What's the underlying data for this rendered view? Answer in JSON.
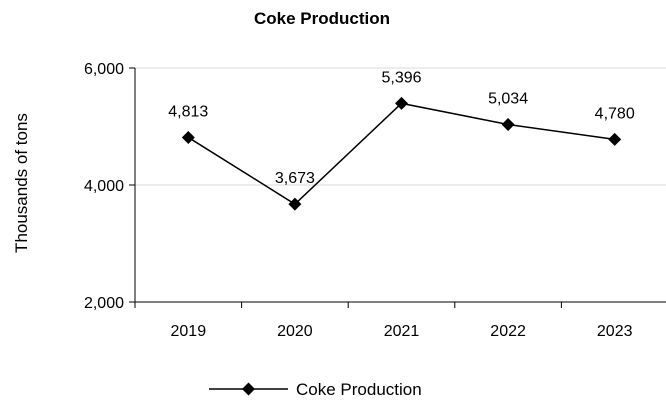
{
  "chart_data": {
    "type": "line",
    "title": "Coke Production",
    "xlabel": "",
    "ylabel": "Thousands of tons",
    "categories": [
      "2019",
      "2020",
      "2021",
      "2022",
      "2023"
    ],
    "series": [
      {
        "name": "Coke Production",
        "values": [
          4813,
          3673,
          5396,
          5034,
          4780
        ],
        "labels": [
          "4,813",
          "3,673",
          "5,396",
          "5,034",
          "4,780"
        ],
        "color": "#000000",
        "marker": "diamond"
      }
    ],
    "ylim": [
      2000,
      6000
    ],
    "yticks": [
      2000,
      4000,
      6000
    ],
    "ytick_labels": [
      "2,000",
      "4,000",
      "6,000"
    ],
    "grid": true,
    "grid_color": "#d9d9d9",
    "legend": "bottom"
  }
}
